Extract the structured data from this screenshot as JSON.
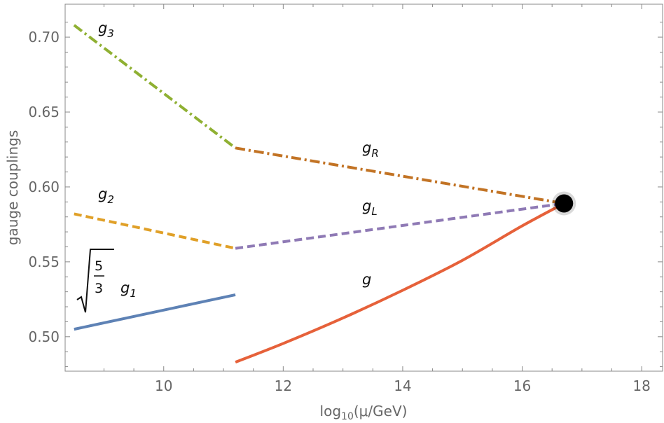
{
  "chart_data": {
    "type": "line",
    "title": "",
    "xlabel": {
      "prefix": "log",
      "sub": "10",
      "suffix": "(μ/GeV)"
    },
    "ylabel": "gauge couplings",
    "xlim": [
      8.35,
      18.35
    ],
    "ylim": [
      0.477,
      0.722
    ],
    "x_ticks": [
      10,
      12,
      14,
      16,
      18
    ],
    "x_tick_labels": [
      "10",
      "12",
      "14",
      "16",
      "18"
    ],
    "y_ticks": [
      0.5,
      0.55,
      0.6,
      0.65,
      0.7
    ],
    "y_tick_labels": [
      "0.50",
      "0.55",
      "0.60",
      "0.65",
      "0.70"
    ],
    "grid": false,
    "series": [
      {
        "name": "g3",
        "label_main": "g",
        "label_sub": "3",
        "color": "#8fb032",
        "style": "dashdot",
        "x": [
          8.5,
          11.2
        ],
        "y": [
          0.708,
          0.626
        ]
      },
      {
        "name": "g2",
        "label_main": "g",
        "label_sub": "2",
        "color": "#e0a028",
        "style": "dashed",
        "x": [
          8.5,
          11.2
        ],
        "y": [
          0.582,
          0.559
        ]
      },
      {
        "name": "g1",
        "label_prefix": "√(5/3)",
        "frac_num": "5",
        "frac_den": "3",
        "label_main": "g",
        "label_sub": "1",
        "color": "#5e82b5",
        "style": "solid",
        "x": [
          8.5,
          11.2
        ],
        "y": [
          0.505,
          0.528
        ]
      },
      {
        "name": "gR",
        "label_main": "g",
        "label_sub": "R",
        "color": "#c27324",
        "style": "dashdot",
        "x": [
          11.2,
          16.7
        ],
        "y": [
          0.626,
          0.589
        ]
      },
      {
        "name": "gL",
        "label_main": "g",
        "label_sub": "L",
        "color": "#8f7ab5",
        "style": "dashed",
        "x": [
          11.2,
          16.7
        ],
        "y": [
          0.559,
          0.589
        ]
      },
      {
        "name": "g",
        "label_main": "g",
        "label_sub": "",
        "color": "#e6613a",
        "style": "solid",
        "x": [
          11.2,
          12,
          13,
          14,
          15,
          16,
          16.7
        ],
        "y": [
          0.483,
          0.4955,
          0.5125,
          0.531,
          0.551,
          0.574,
          0.589
        ]
      }
    ],
    "annotations": [
      {
        "type": "point",
        "name": "unification-point",
        "x": 16.7,
        "y": 0.589,
        "color": "#000000"
      }
    ]
  }
}
